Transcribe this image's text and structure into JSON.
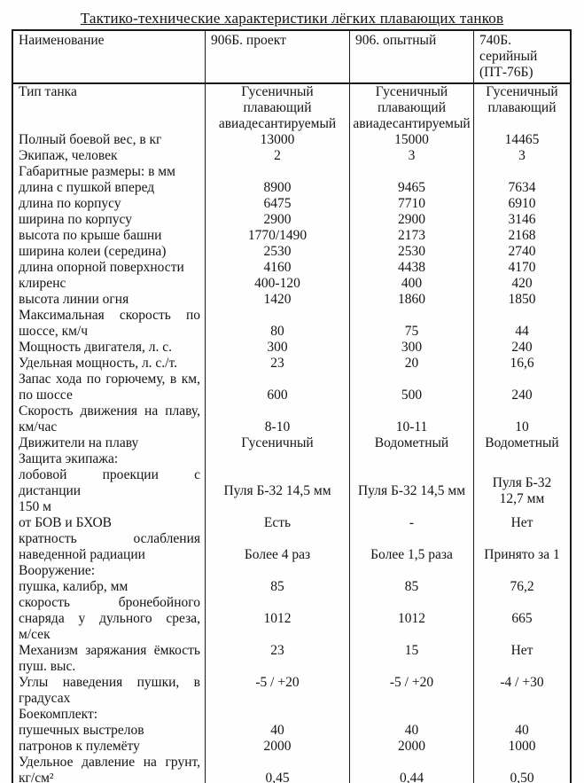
{
  "title": "Тактико-технические характеристики лёгких плавающих танков",
  "table": {
    "columns": [
      "Наименование",
      "906Б. проект",
      "906. опытный",
      "740Б.\nсерийный\n(ПТ-76Б)"
    ],
    "rows": [
      {
        "label_lines": [
          "Тип танка"
        ],
        "values": [
          "Гусеничный\nплавающий\nавиадесантируемый",
          "Гусеничный\nплавающий\nавиадесантируемый",
          "Гусеничный\nплавающий"
        ],
        "lines": 3,
        "valign": "top"
      },
      {
        "label": "Полный боевой вес, в кг",
        "values": [
          "13000",
          "15000",
          "14465"
        ]
      },
      {
        "label": "Экипаж, человек",
        "values": [
          "2",
          "3",
          "3"
        ]
      },
      {
        "label": "Габаритные размеры: в мм",
        "values": [
          "",
          "",
          ""
        ]
      },
      {
        "label": "длина с пушкой вперед",
        "values": [
          "8900",
          "9465",
          "7634"
        ]
      },
      {
        "label": "длина по корпусу",
        "values": [
          "6475",
          "7710",
          "6910"
        ]
      },
      {
        "label": "ширина по корпусу",
        "values": [
          "2900",
          "2900",
          "3146"
        ]
      },
      {
        "label": "высота по крыше башни",
        "values": [
          "1770/1490",
          "2173",
          "2168"
        ]
      },
      {
        "label": "ширина колеи (середина)",
        "values": [
          "2530",
          "2530",
          "2740"
        ]
      },
      {
        "label": "длина опорной поверхности",
        "values": [
          "4160",
          "4438",
          "4170"
        ]
      },
      {
        "label": "клиренс",
        "values": [
          "400-120",
          "400",
          "420"
        ]
      },
      {
        "label": "высота линии огня",
        "values": [
          "1420",
          "1860",
          "1850"
        ]
      },
      {
        "label_lines": [
          "Максимальная скорость по",
          "шоссе, км/ч"
        ],
        "values": [
          "80",
          "75",
          "44"
        ],
        "lines": 2,
        "valign": "bottom"
      },
      {
        "label": "Мощность двигателя, л. с.",
        "values": [
          "300",
          "300",
          "240"
        ]
      },
      {
        "label": "Удельная мощность, л. с./т.",
        "values": [
          "23",
          "20",
          "16,6"
        ]
      },
      {
        "label_lines": [
          "Запас хода по горючему, в км,",
          "по шоссе"
        ],
        "values": [
          "600",
          "500",
          "240"
        ],
        "lines": 2,
        "valign": "bottom"
      },
      {
        "label_lines": [
          "Скорость движения на плаву,",
          "км/час"
        ],
        "values": [
          "8-10",
          "10-11",
          "10"
        ],
        "lines": 2,
        "valign": "bottom"
      },
      {
        "label": "Движители на плаву",
        "values": [
          "Гусеничный",
          "Водометный",
          "Водометный"
        ]
      },
      {
        "label": "Защита экипажа:",
        "values": [
          "",
          "",
          ""
        ]
      },
      {
        "label_lines": [
          "лобовой проекции с дистанции",
          "150 м"
        ],
        "values": [
          "Пуля Б-32 14,5 мм",
          "Пуля Б-32 14,5 мм",
          "Пуля Б-32\n12,7 мм"
        ],
        "lines": 3,
        "valign": "center"
      },
      {
        "label": "от БОВ и БХОВ",
        "values": [
          "Есть",
          "-",
          "Нет"
        ]
      },
      {
        "label_lines": [
          "кратность ослабления",
          "наведенной радиации"
        ],
        "values": [
          "Более 4 раз",
          "Более 1,5 раза",
          "Принято за 1"
        ],
        "lines": 2,
        "valign": "bottom"
      },
      {
        "label": "Вооружение:",
        "values": [
          "",
          "",
          ""
        ]
      },
      {
        "label": "пушка, калибр, мм",
        "values": [
          "85",
          "85",
          "76,2"
        ]
      },
      {
        "label_lines": [
          "скорость бронебойного",
          "снаряда у дульного среза,",
          "м/сек"
        ],
        "values": [
          "1012",
          "1012",
          "665"
        ],
        "lines": 3,
        "valign": "center"
      },
      {
        "label_lines": [
          "Механизм заряжания ёмкость",
          "пуш. выс."
        ],
        "values": [
          "23",
          "15",
          "Нет"
        ],
        "lines": 2,
        "valign": "top"
      },
      {
        "label_lines": [
          "Углы наведения пушки, в",
          "градусах"
        ],
        "values": [
          "-5 / +20",
          "-5 / +20",
          "-4 / +30"
        ],
        "lines": 2,
        "valign": "top"
      },
      {
        "label": "Боекомплект:",
        "values": [
          "",
          "",
          ""
        ]
      },
      {
        "label": "пушечных выстрелов",
        "values": [
          "40",
          "40",
          "40"
        ]
      },
      {
        "label": "патронов к пулемёту",
        "values": [
          "2000",
          "2000",
          "1000"
        ]
      },
      {
        "label_lines": [
          "Удельное давление на грунт,",
          "кг/см²"
        ],
        "values": [
          "0,45",
          "0,44",
          "0,50"
        ],
        "lines": 2,
        "valign": "bottom"
      }
    ]
  }
}
